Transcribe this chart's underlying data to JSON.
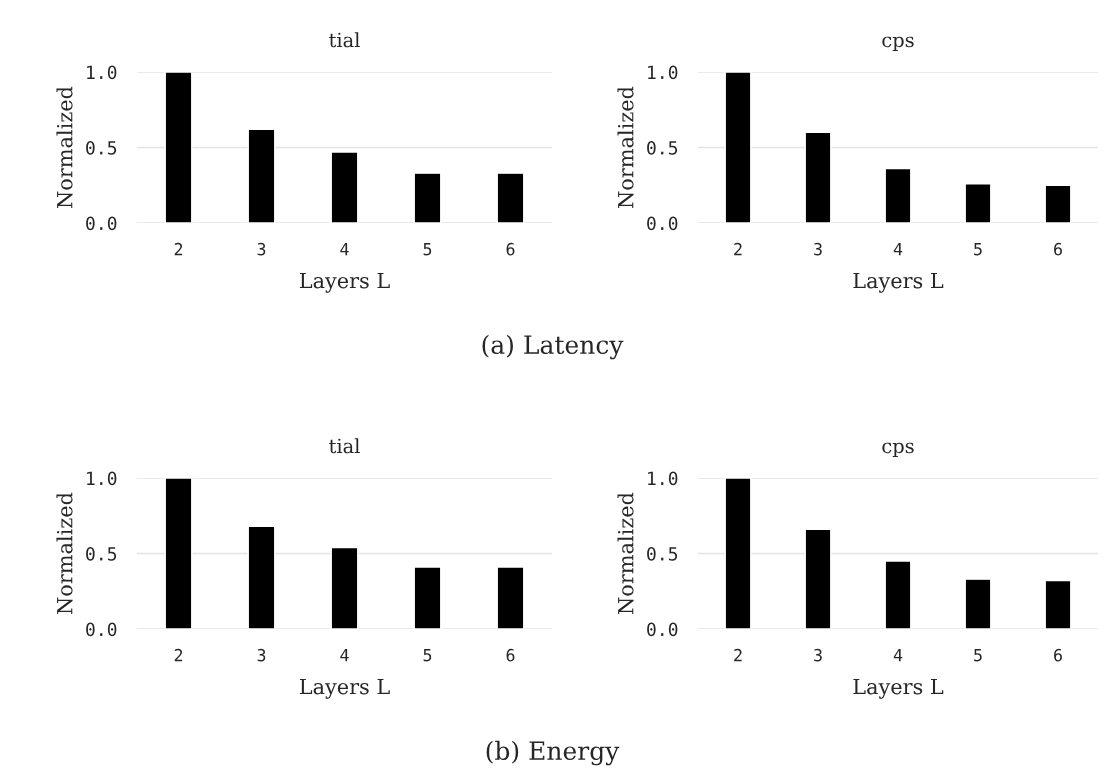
{
  "chart_data": [
    {
      "type": "bar",
      "title": "tial",
      "xlabel": "Layers L",
      "ylabel": "Normalized",
      "categories": [
        "2",
        "3",
        "4",
        "5",
        "6"
      ],
      "values": [
        1.0,
        0.62,
        0.47,
        0.33,
        0.33
      ],
      "color": "#000000",
      "ylim": [
        0,
        1
      ],
      "yticks": [
        {
          "value": 0,
          "label": "0.0"
        },
        {
          "value": 0.5,
          "label": "0.5"
        },
        {
          "value": 1,
          "label": "1.0"
        }
      ],
      "grid": "y",
      "annotations": [
        "(a) Latency"
      ]
    },
    {
      "type": "bar",
      "title": "cps",
      "xlabel": "Layers L",
      "ylabel": "Normalized",
      "categories": [
        "2",
        "3",
        "4",
        "5",
        "6"
      ],
      "values": [
        1.0,
        0.6,
        0.36,
        0.26,
        0.25
      ],
      "color": "#000000",
      "ylim": [
        0,
        1
      ],
      "yticks": [
        {
          "value": 0,
          "label": "0.0"
        },
        {
          "value": 0.5,
          "label": "0.5"
        },
        {
          "value": 1,
          "label": "1.0"
        }
      ],
      "grid": "y"
    },
    {
      "type": "bar",
      "title": "tial",
      "xlabel": "Layers L",
      "ylabel": "Normalized",
      "categories": [
        "2",
        "3",
        "4",
        "5",
        "6"
      ],
      "values": [
        1.0,
        0.68,
        0.54,
        0.41,
        0.41
      ],
      "color": "#000000",
      "ylim": [
        0,
        1
      ],
      "yticks": [
        {
          "value": 0,
          "label": "0.0"
        },
        {
          "value": 0.5,
          "label": "0.5"
        },
        {
          "value": 1,
          "label": "1.0"
        }
      ],
      "grid": "y",
      "annotations": [
        "(b) Energy"
      ]
    },
    {
      "type": "bar",
      "title": "cps",
      "xlabel": "Layers L",
      "ylabel": "Normalized",
      "categories": [
        "2",
        "3",
        "4",
        "5",
        "6"
      ],
      "values": [
        1.0,
        0.66,
        0.45,
        0.33,
        0.32
      ],
      "color": "#000000",
      "ylim": [
        0,
        1
      ],
      "yticks": [
        {
          "value": 0,
          "label": "0.0"
        },
        {
          "value": 0.5,
          "label": "0.5"
        },
        {
          "value": 1,
          "label": "1.0"
        }
      ],
      "grid": "y"
    }
  ]
}
